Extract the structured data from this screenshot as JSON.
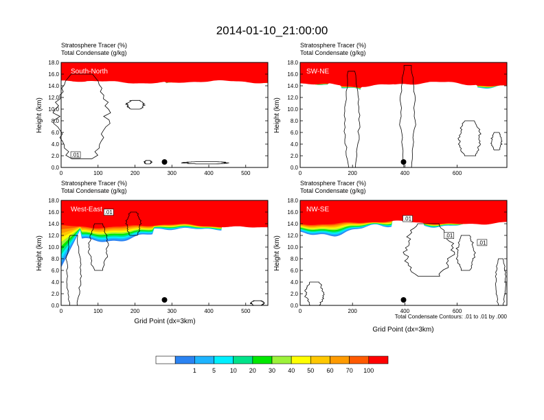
{
  "figure": {
    "title": "2014-01-10_21:00:00",
    "note": "Total Condensate Contours: .01 to .01 by .000"
  },
  "chart_data": [
    {
      "type": "heatmap",
      "panel": "South-North",
      "title_lines": [
        "Stratosphere Tracer   (%)",
        "Total Condensate   (g/kg)"
      ],
      "ylabel": "Height (km)",
      "xlabel": "",
      "xlim": [
        0,
        560
      ],
      "ylim": [
        0,
        18
      ],
      "xticks": [
        0,
        100,
        200,
        300,
        400,
        500
      ],
      "yticks": [
        0.0,
        2.0,
        4.0,
        6.0,
        8.0,
        10.0,
        12.0,
        14.0,
        16.0,
        18.0
      ],
      "marker_x": 280,
      "contour_labels": [
        ".01"
      ]
    },
    {
      "type": "heatmap",
      "panel": "SW-NE",
      "title_lines": [
        "Stratosphere Tracer   (%)",
        "Total Condensate   (g/kg)"
      ],
      "ylabel": "Height (km)",
      "xlabel": "",
      "xlim": [
        0,
        790
      ],
      "ylim": [
        0,
        18
      ],
      "xticks": [
        0,
        200,
        400,
        600
      ],
      "yticks": [
        0.0,
        2.0,
        4.0,
        6.0,
        8.0,
        10.0,
        12.0,
        14.0,
        16.0,
        18.0
      ],
      "marker_x": 395,
      "contour_labels": []
    },
    {
      "type": "heatmap",
      "panel": "West-East",
      "title_lines": [
        "Stratosphere Tracer   (%)",
        "Total Condensate   (g/kg)"
      ],
      "ylabel": "Height (km)",
      "xlabel": "Grid Point (dx=3km)",
      "xlim": [
        0,
        560
      ],
      "ylim": [
        0,
        18
      ],
      "xticks": [
        0,
        100,
        200,
        300,
        400,
        500
      ],
      "yticks": [
        0.0,
        2.0,
        4.0,
        6.0,
        8.0,
        10.0,
        12.0,
        14.0,
        16.0,
        18.0
      ],
      "marker_x": 280,
      "contour_labels": [
        ".01"
      ]
    },
    {
      "type": "heatmap",
      "panel": "NW-SE",
      "title_lines": [
        "Stratosphere Tracer   (%)",
        "Total Condensate   (g/kg)"
      ],
      "ylabel": "Height (km)",
      "xlabel": "Grid Point (dx=3km)",
      "xlim": [
        0,
        790
      ],
      "ylim": [
        0,
        18
      ],
      "xticks": [
        0,
        200,
        400,
        600
      ],
      "yticks": [
        0.0,
        2.0,
        4.0,
        6.0,
        8.0,
        10.0,
        12.0,
        14.0,
        16.0,
        18.0
      ],
      "marker_x": 395,
      "contour_labels": [
        ".01",
        ".01",
        ".01"
      ]
    }
  ],
  "colorbar": {
    "labels": [
      "1",
      "5",
      "10",
      "20",
      "30",
      "40",
      "50",
      "60",
      "70",
      "100"
    ],
    "colors": [
      "#ffffff",
      "#2b83f2",
      "#1eb4ff",
      "#00f0ff",
      "#00e38a",
      "#00e800",
      "#9df23a",
      "#ffff00",
      "#ffc800",
      "#ff9b00",
      "#ff5a00",
      "#ff0000"
    ]
  }
}
